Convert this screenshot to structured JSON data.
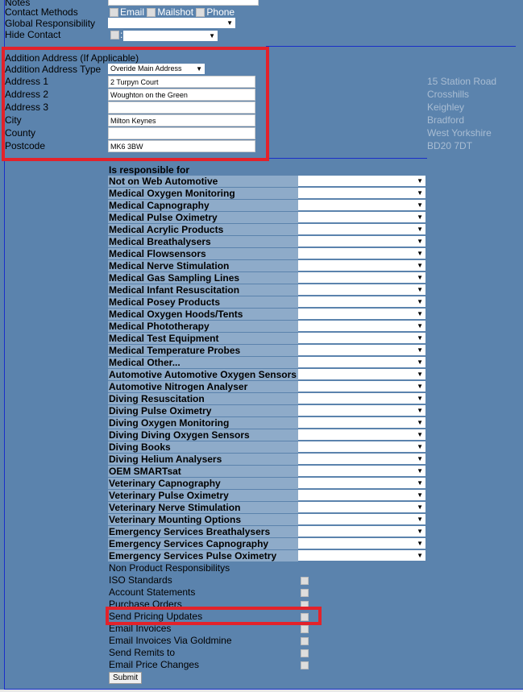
{
  "contact": {
    "notes_label": "Notes",
    "contact_methods_label": "Contact Methods",
    "methods": [
      "Email",
      "Mailshot",
      "Phone"
    ],
    "global_resp_label": "Global Responsibility",
    "hide_contact_label": "Hide Contact",
    "hide_sep": ":"
  },
  "address": {
    "heading": "Addition Address (If Applicable)",
    "type_label": "Addition Address Type",
    "type_value": "Overide Main Address",
    "fields": [
      {
        "label": "Address 1",
        "value": "2 Turpyn Court"
      },
      {
        "label": "Address 2",
        "value": "Woughton on the Green"
      },
      {
        "label": "Address 3",
        "value": ""
      },
      {
        "label": "City",
        "value": "Milton Keynes"
      },
      {
        "label": "County",
        "value": ""
      },
      {
        "label": "Postcode",
        "value": "MK6 3BW"
      }
    ],
    "main_address": [
      "15 Station Road",
      "Crosshills",
      "Keighley",
      "Bradford",
      "West Yorkshire",
      "BD20 7DT"
    ]
  },
  "responsibilities": {
    "heading": "Is responsible for",
    "items": [
      "Not on Web Automotive",
      "Medical Oxygen Monitoring",
      "Medical Capnography",
      "Medical Pulse Oximetry",
      "Medical Acrylic Products",
      "Medical Breathalysers",
      "Medical Flowsensors",
      "Medical Nerve Stimulation",
      "Medical Gas Sampling Lines",
      "Medical Infant Resuscitation",
      "Medical Posey Products",
      "Medical Oxygen Hoods/Tents",
      "Medical Phototherapy",
      "Medical Test Equipment",
      "Medical Temperature Probes",
      "Medical Other...",
      "Automotive Automotive Oxygen Sensors",
      "Automotive Nitrogen Analyser",
      "Diving Resuscitation",
      "Diving Pulse Oximetry",
      "Diving Oxygen Monitoring",
      "Diving Diving Oxygen Sensors",
      "Diving Books",
      "Diving Helium Analysers",
      "OEM SMARTsat",
      "Veterinary Capnography",
      "Veterinary Pulse Oximetry",
      "Veterinary Nerve Stimulation",
      "Veterinary Mounting Options",
      "Emergency Services Breathalysers",
      "Emergency Services Capnography",
      "Emergency Services Pulse Oximetry"
    ]
  },
  "non_product": {
    "heading": "Non Product Responsibilitys",
    "items": [
      "ISO Standards",
      "Account Statements",
      "Purchase Orders",
      "Send Pricing Updates",
      "Email Invoices",
      "Email Invoices Via Goldmine",
      "Send Remits to",
      "Email Price Changes"
    ]
  },
  "submit_label": "Submit",
  "colors": {
    "background": "#5b83ad",
    "label_cell": "#8eabc9",
    "highlight": "#e3222a",
    "border": "#1a2fc8"
  }
}
